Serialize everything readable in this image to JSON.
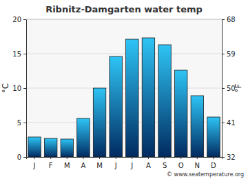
{
  "chart_data": {
    "type": "bar",
    "title": "Ribnitz-Damgarten water temp",
    "categories": [
      "J",
      "F",
      "M",
      "A",
      "M",
      "J",
      "J",
      "A",
      "S",
      "O",
      "N",
      "D"
    ],
    "values": [
      2.9,
      2.7,
      2.6,
      5.6,
      10.0,
      14.6,
      17.1,
      17.3,
      16.3,
      12.6,
      8.9,
      5.8
    ],
    "color": "#2ec4f5",
    "ylim": [
      0,
      20
    ],
    "yticks": [
      0,
      5,
      10,
      15,
      20
    ],
    "y_label": "°C",
    "y2lim": [
      32,
      68
    ],
    "y2ticks": [
      32,
      41,
      50,
      59,
      68
    ],
    "y2_label": "°F",
    "grid": true,
    "source": "© www.seatemperature.org"
  }
}
